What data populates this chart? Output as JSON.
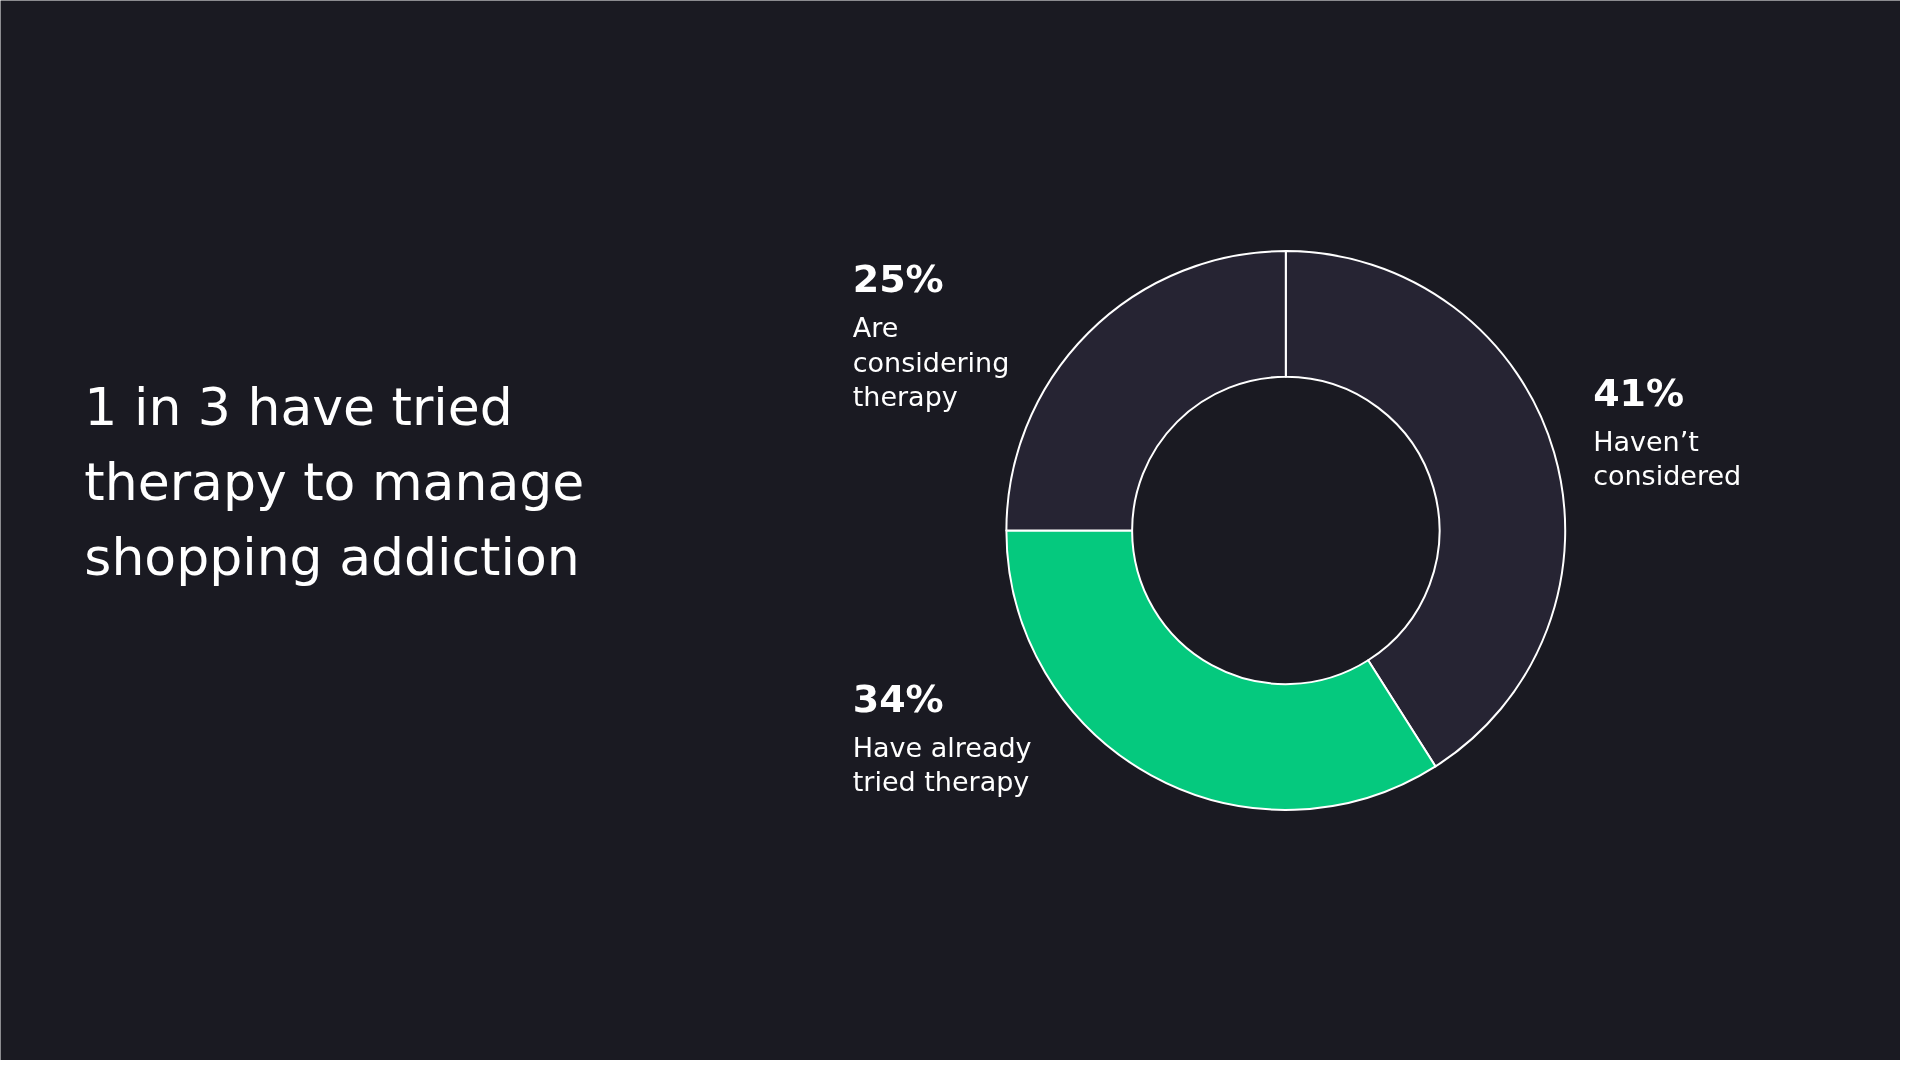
{
  "chart_data": {
    "type": "donut",
    "title": "1 in 3 have tried therapy to manage shopping addiction",
    "categories": [
      "Haven’t considered",
      "Have already tried therapy",
      "Are considering therapy"
    ],
    "values": [
      41,
      34,
      25
    ],
    "colors": [
      "#262433",
      "#05c97e",
      "#262433"
    ],
    "value_labels": [
      "41%",
      "34%",
      "25%"
    ]
  }
}
